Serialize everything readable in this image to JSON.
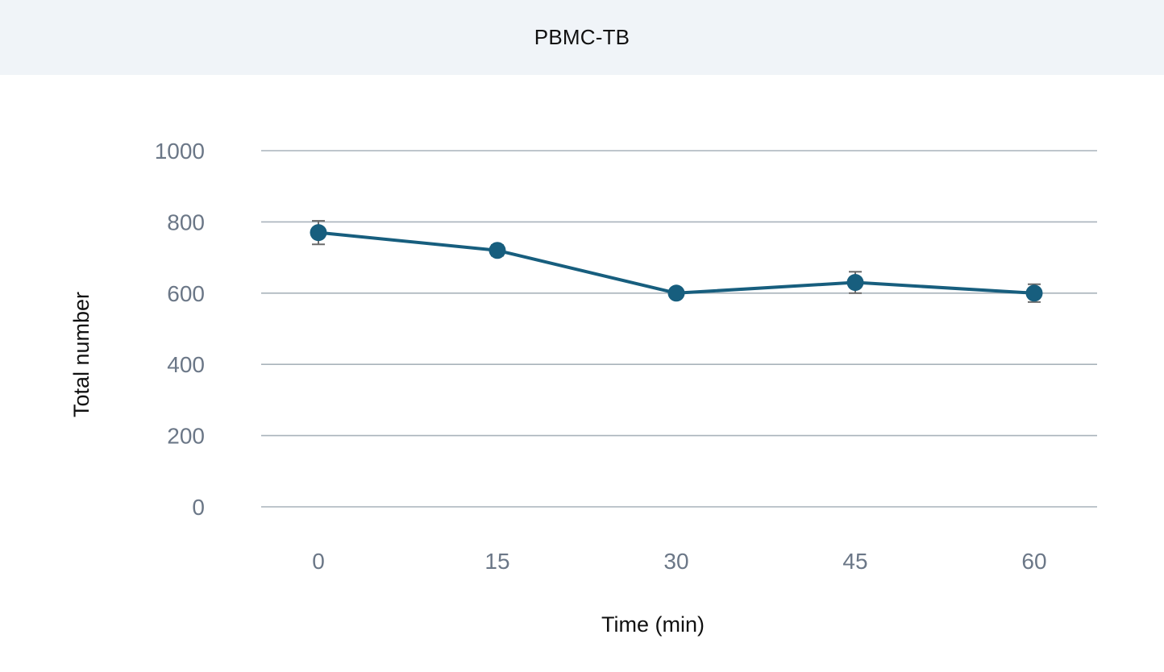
{
  "header": {
    "title": "PBMC-TB"
  },
  "chart_data": {
    "type": "line",
    "title": "PBMC-TB",
    "xlabel": "Time (min)",
    "ylabel": "Total number",
    "categories": [
      "0",
      "15",
      "30",
      "45",
      "60"
    ],
    "y_ticks": [
      "0",
      "200",
      "400",
      "600",
      "800",
      "1000"
    ],
    "ylim": [
      0,
      1000
    ],
    "grid": true,
    "series": [
      {
        "values": [
          770,
          720,
          600,
          630,
          600
        ],
        "error": [
          33,
          15,
          12,
          30,
          25
        ],
        "color": "#175e7e"
      }
    ],
    "colors": {
      "line": "#175e7e",
      "gridline": "#a9b3bb",
      "error_bar": "#6b6b6b",
      "tick_text": "#6b7787",
      "header_bg": "#f0f4f8"
    }
  }
}
